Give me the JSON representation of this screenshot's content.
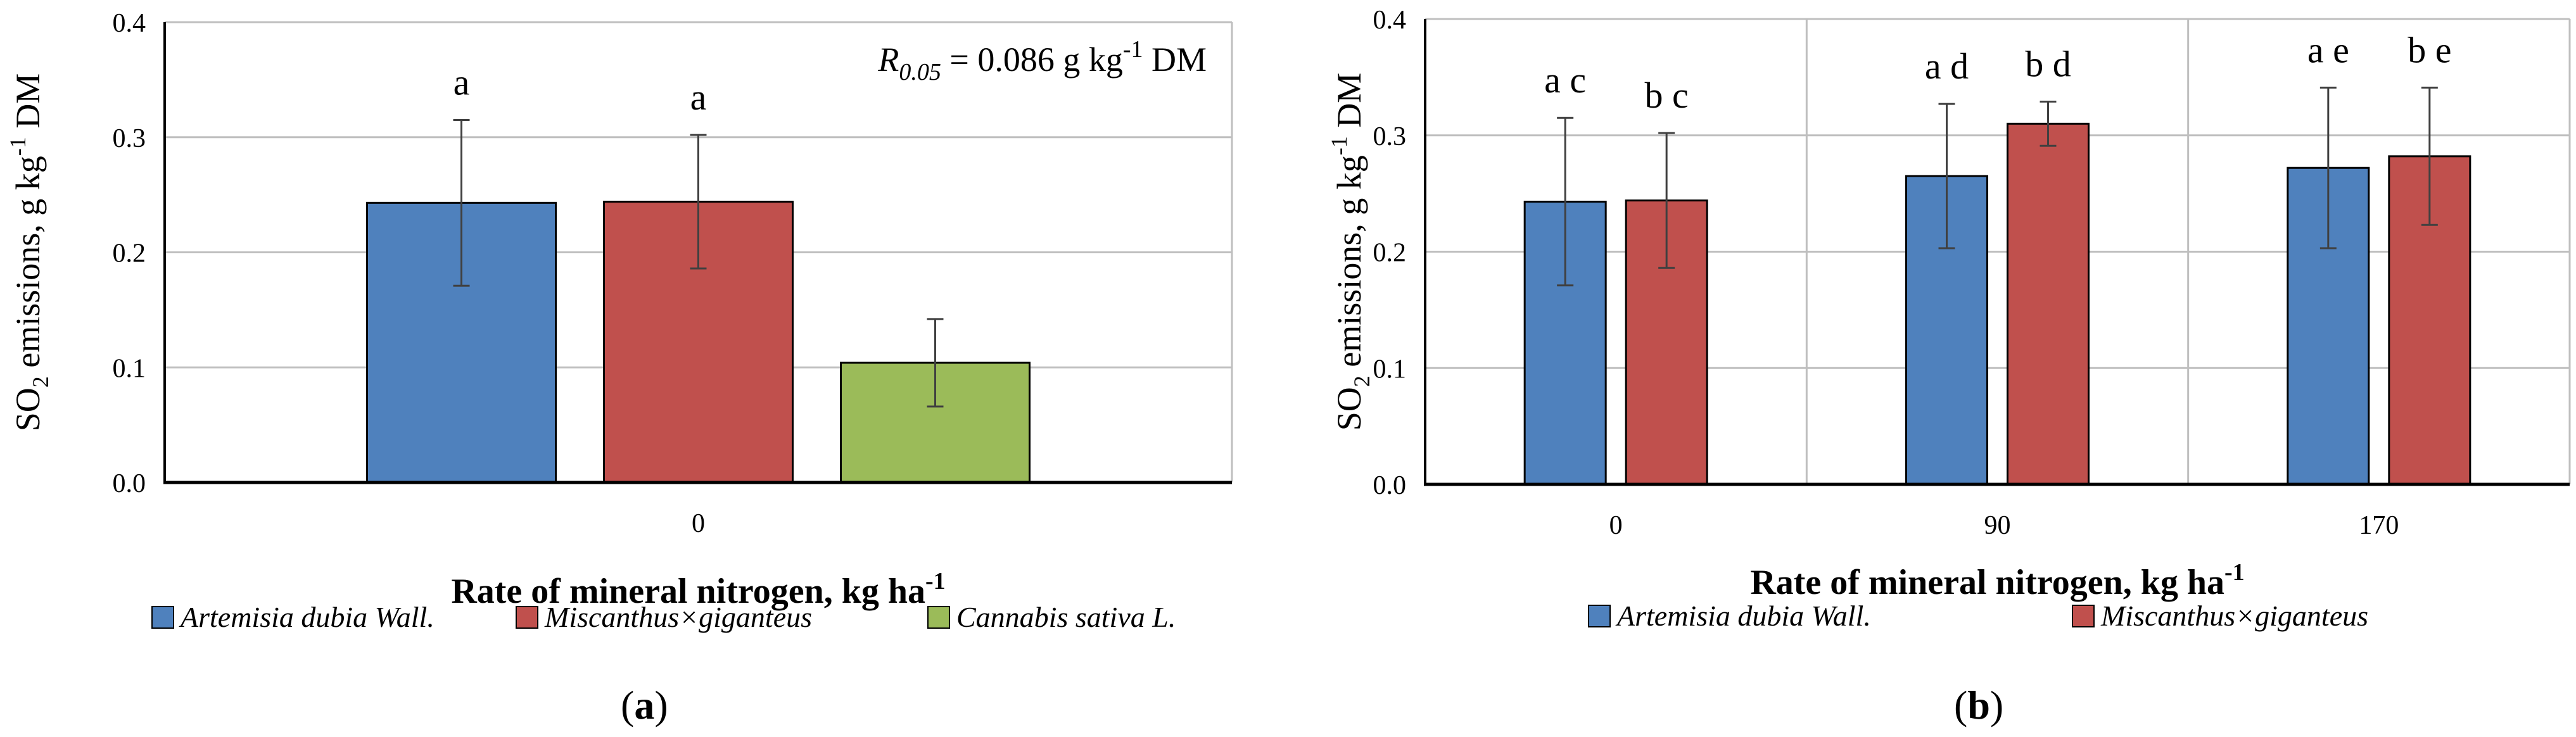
{
  "colors": {
    "artemisia": "#4F81BD",
    "miscanthus": "#C0504D",
    "cannabis": "#9BBB59",
    "grid": "#BFBFBF",
    "axis": "#000000",
    "errorbar": "#404040"
  },
  "chart_data": [
    {
      "panel": "(a)",
      "type": "bar",
      "categories": [
        "0"
      ],
      "series": [
        {
          "name": "Artemisia dubia Wall.",
          "values": [
            0.243
          ],
          "errors": [
            0.072
          ],
          "letters": [
            "a"
          ]
        },
        {
          "name": "Miscanthus×giganteus",
          "values": [
            0.244
          ],
          "errors": [
            0.058
          ],
          "letters": [
            "a"
          ]
        },
        {
          "name": "Cannabis sativa L.",
          "values": [
            0.104
          ],
          "errors": [
            0.038
          ],
          "letters": [
            ""
          ]
        }
      ],
      "ylim": [
        0,
        0.4
      ],
      "yticks": [
        "0.0",
        "0.1",
        "0.2",
        "0.3",
        "0.4"
      ],
      "ylabel": {
        "pre": "SO",
        "sub": "2",
        "mid": " emissions, g kg",
        "sup": "-1",
        "post": " DM"
      },
      "xlabel": {
        "pre": "Rate of mineral nitrogen, kg ha",
        "sup": "-1"
      },
      "annotation": {
        "r": "R",
        "r_sub": "0.05",
        "text": " = 0.086 g kg",
        "sup": "-1",
        "post": " DM"
      },
      "grid": "horizontal",
      "legend": "bottom"
    },
    {
      "panel": "(b)",
      "type": "bar",
      "categories": [
        "0",
        "90",
        "170"
      ],
      "series": [
        {
          "name": "Artemisia dubia Wall.",
          "values": [
            0.243,
            0.265,
            0.272
          ],
          "errors": [
            0.072,
            0.062,
            0.069
          ],
          "letters": [
            "a c",
            "a d",
            "a e"
          ]
        },
        {
          "name": "Miscanthus×giganteus",
          "values": [
            0.244,
            0.31,
            0.282
          ],
          "errors": [
            0.058,
            0.019,
            0.059
          ],
          "letters": [
            "b c",
            "b d",
            "b e"
          ]
        }
      ],
      "ylim": [
        0,
        0.4
      ],
      "yticks": [
        "0.0",
        "0.1",
        "0.2",
        "0.3",
        "0.4"
      ],
      "ylabel": {
        "pre": "SO",
        "sub": "2",
        "mid": " emissions, g kg",
        "sup": "-1",
        "post": " DM"
      },
      "xlabel": {
        "pre": "Rate of mineral nitrogen, kg ha",
        "sup": "-1"
      },
      "grid": "horizontal and vertical",
      "legend": "bottom"
    }
  ]
}
